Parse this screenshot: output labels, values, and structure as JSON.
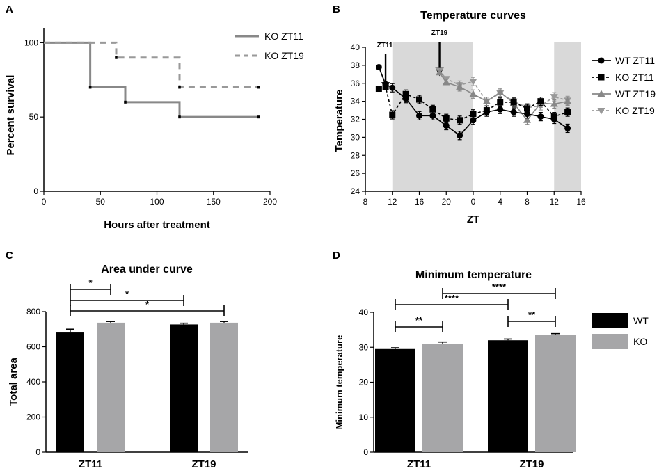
{
  "chart_data": [
    {
      "id": "A",
      "type": "line",
      "panel_letter": "A",
      "title": "",
      "xlabel": "Hours after treatment",
      "ylabel": "Percent survival",
      "xlim": [
        0,
        200
      ],
      "ylim": [
        0,
        110
      ],
      "xticks": [
        "0",
        "50",
        "100",
        "150",
        "200"
      ],
      "yticks": [
        "0",
        "50",
        "100"
      ],
      "series": [
        {
          "name": "KO ZT11",
          "style": "solid",
          "color": "#888888",
          "steps": [
            [
              0,
              100
            ],
            [
              41,
              100
            ],
            [
              41,
              70
            ],
            [
              72,
              70
            ],
            [
              72,
              60
            ],
            [
              120,
              60
            ],
            [
              120,
              50
            ],
            [
              190,
              50
            ]
          ]
        },
        {
          "name": "KO ZT19",
          "style": "dashed",
          "color": "#999999",
          "steps": [
            [
              0,
              100
            ],
            [
              64,
              100
            ],
            [
              64,
              90
            ],
            [
              120,
              90
            ],
            [
              120,
              70
            ],
            [
              190,
              70
            ]
          ]
        }
      ]
    },
    {
      "id": "B",
      "type": "line",
      "panel_letter": "B",
      "title": "Temperature curves",
      "xlabel": "ZT",
      "ylabel": "Temperature",
      "xlim": [
        8,
        40
      ],
      "ylim": [
        24,
        40
      ],
      "xticks": [
        "8",
        "12",
        "16",
        "20",
        "0",
        "4",
        "8",
        "12",
        "16"
      ],
      "yticks": [
        "24",
        "26",
        "28",
        "30",
        "32",
        "34",
        "36",
        "38",
        "40"
      ],
      "shaded_ranges": [
        [
          12,
          24
        ],
        [
          36,
          40
        ]
      ],
      "annotations": [
        {
          "text": "ZT11",
          "x": 11
        },
        {
          "text": "ZT19",
          "x": 19
        }
      ],
      "series": [
        {
          "name": "WT ZT11",
          "marker": "circle",
          "style": "solid",
          "color": "#000000",
          "x": [
            10,
            11,
            12,
            14,
            16,
            18,
            20,
            22,
            24,
            26,
            28,
            30,
            32,
            34,
            36,
            38
          ],
          "y": [
            37.8,
            35.9,
            35.5,
            34.3,
            32.4,
            32.4,
            31.3,
            30.2,
            31.9,
            32.8,
            33.1,
            32.8,
            32.6,
            32.3,
            32.0,
            31.0
          ]
        },
        {
          "name": "KO ZT11",
          "marker": "square",
          "style": "dashed",
          "color": "#000000",
          "x": [
            10,
            11,
            12,
            14,
            16,
            18,
            20,
            22,
            24,
            26,
            28,
            30,
            32,
            34,
            36,
            38
          ],
          "y": [
            35.4,
            35.6,
            32.5,
            34.8,
            34.2,
            33.1,
            32.1,
            31.9,
            32.6,
            33.0,
            33.9,
            33.9,
            33.2,
            34.0,
            32.3,
            32.8
          ]
        },
        {
          "name": "WT ZT19",
          "marker": "triangle-up",
          "style": "solid",
          "color": "#888888",
          "x": [
            19,
            20,
            22,
            24,
            26,
            28,
            30,
            32,
            34,
            36,
            38
          ],
          "y": [
            37.2,
            36.1,
            35.6,
            34.8,
            34.0,
            35.0,
            33.8,
            31.9,
            33.8,
            33.7,
            34.0
          ]
        },
        {
          "name": "KO ZT19",
          "marker": "triangle-down",
          "style": "dashed",
          "color": "#999999",
          "x": [
            19,
            20,
            22,
            24,
            26,
            28,
            30,
            32,
            34,
            36,
            38
          ],
          "y": [
            37.4,
            36.5,
            35.8,
            36.2,
            34.0,
            34.9,
            34.0,
            33.3,
            33.5,
            34.5,
            34.1
          ]
        }
      ]
    },
    {
      "id": "C",
      "type": "bar",
      "panel_letter": "C",
      "title": "Area under curve",
      "xlabel": "",
      "ylabel": "Total area",
      "ylim": [
        0,
        800
      ],
      "yticks": [
        "0",
        "200",
        "400",
        "600",
        "800"
      ],
      "categories": [
        "ZT11",
        "ZT19"
      ],
      "series": [
        {
          "name": "WT",
          "color": "#000000",
          "values": [
            681,
            727
          ],
          "errors": [
            15,
            3
          ]
        },
        {
          "name": "KO",
          "color": "#a6a6a8",
          "values": [
            737,
            737
          ],
          "errors": [
            3,
            3
          ]
        }
      ],
      "significance": [
        {
          "label": "*",
          "from": [
            0,
            0
          ],
          "to": [
            0,
            1
          ]
        },
        {
          "label": "*",
          "from": [
            0,
            0
          ],
          "to": [
            1,
            0
          ]
        },
        {
          "label": "*",
          "from": [
            0,
            0
          ],
          "to": [
            1,
            1
          ]
        }
      ]
    },
    {
      "id": "D",
      "type": "bar",
      "panel_letter": "D",
      "title": "Minimum temperature",
      "xlabel": "",
      "ylabel": "Minimum temperature",
      "ylim": [
        0,
        40
      ],
      "yticks": [
        "0",
        "10",
        "20",
        "30",
        "40"
      ],
      "categories": [
        "ZT11",
        "ZT19"
      ],
      "series": [
        {
          "name": "WT",
          "color": "#000000",
          "values": [
            29.5,
            32.0
          ],
          "errors": [
            0.15,
            0.15
          ]
        },
        {
          "name": "KO",
          "color": "#a6a6a8",
          "values": [
            31.0,
            33.5
          ],
          "errors": [
            0.3,
            0.2
          ]
        }
      ],
      "significance": [
        {
          "label": "**",
          "from": [
            0,
            0
          ],
          "to": [
            0,
            1
          ]
        },
        {
          "label": "****",
          "from": [
            0,
            1
          ],
          "to": [
            1,
            1
          ]
        },
        {
          "label": "****",
          "from": [
            0,
            0
          ],
          "to": [
            1,
            0
          ]
        },
        {
          "label": "**",
          "from": [
            1,
            0
          ],
          "to": [
            1,
            1
          ]
        }
      ],
      "legend": [
        {
          "name": "WT",
          "color": "#000000"
        },
        {
          "name": "KO",
          "color": "#a6a6a8"
        }
      ]
    }
  ]
}
